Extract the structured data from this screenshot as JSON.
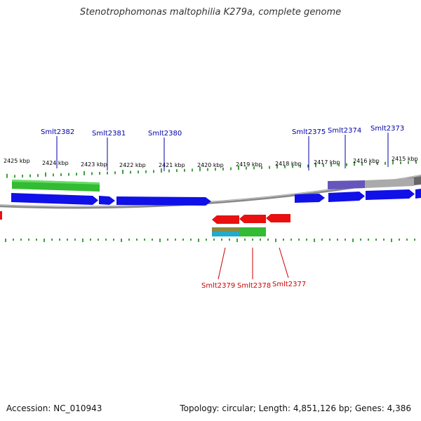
{
  "title": "Stenotrophomonas maltophilia K279a, complete genome",
  "colors": {
    "forward_gene": "#1010e8",
    "reverse_gene": "#e81010",
    "forward_label": "#0000aa",
    "reverse_label": "#cc0000",
    "tick": "#008000",
    "backbone": "#888888",
    "feature_green": "#33bb33",
    "feature_purple": "#6655bb",
    "feature_gray": "#aaaaaa",
    "feature_olive": "#8a8a40",
    "feature_cyan": "#22aacc"
  },
  "scale_labels": [
    "2425 kbp",
    "2424 kbp",
    "2423 kbp",
    "2422 kbp",
    "2421 kbp",
    "2420 kbp",
    "2419 kbp",
    "2418 kbp",
    "2417 kbp",
    "2416 kbp",
    "2415 kbp"
  ],
  "forward_genes": [
    "Smlt2382",
    "Smlt2381",
    "Smlt2380",
    "Smlt2375",
    "Smlt2374",
    "Smlt2373"
  ],
  "reverse_genes": [
    "Smlt2379",
    "Smlt2378",
    "Smlt2377"
  ],
  "footer": {
    "accession": "Accession: NC_010943",
    "summary": "Topology: circular; Length: 4,851,126 bp; Genes: 4,386"
  }
}
